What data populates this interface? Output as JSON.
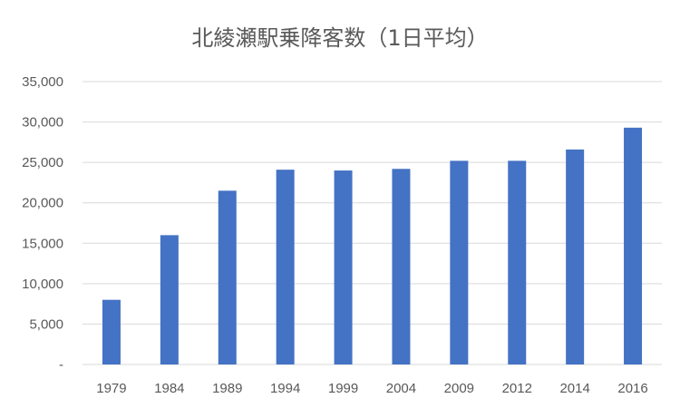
{
  "chart_data": {
    "type": "bar",
    "title": "北綾瀬駅乗降客数（1日平均）",
    "categories": [
      "1979",
      "1984",
      "1989",
      "1994",
      "1999",
      "2004",
      "2009",
      "2012",
      "2014",
      "2016"
    ],
    "values": [
      8000,
      16000,
      21500,
      24100,
      24000,
      24200,
      25200,
      25200,
      26600,
      29300
    ],
    "xlabel": "",
    "ylabel": "",
    "ylim": [
      0,
      35000
    ],
    "y_ticks": [
      "-",
      "5,000",
      "10,000",
      "15,000",
      "20,000",
      "25,000",
      "30,000",
      "35,000"
    ],
    "grid": true,
    "legend": "none",
    "bar_color": "#4472C4",
    "grid_color": "#D9D9D9"
  }
}
